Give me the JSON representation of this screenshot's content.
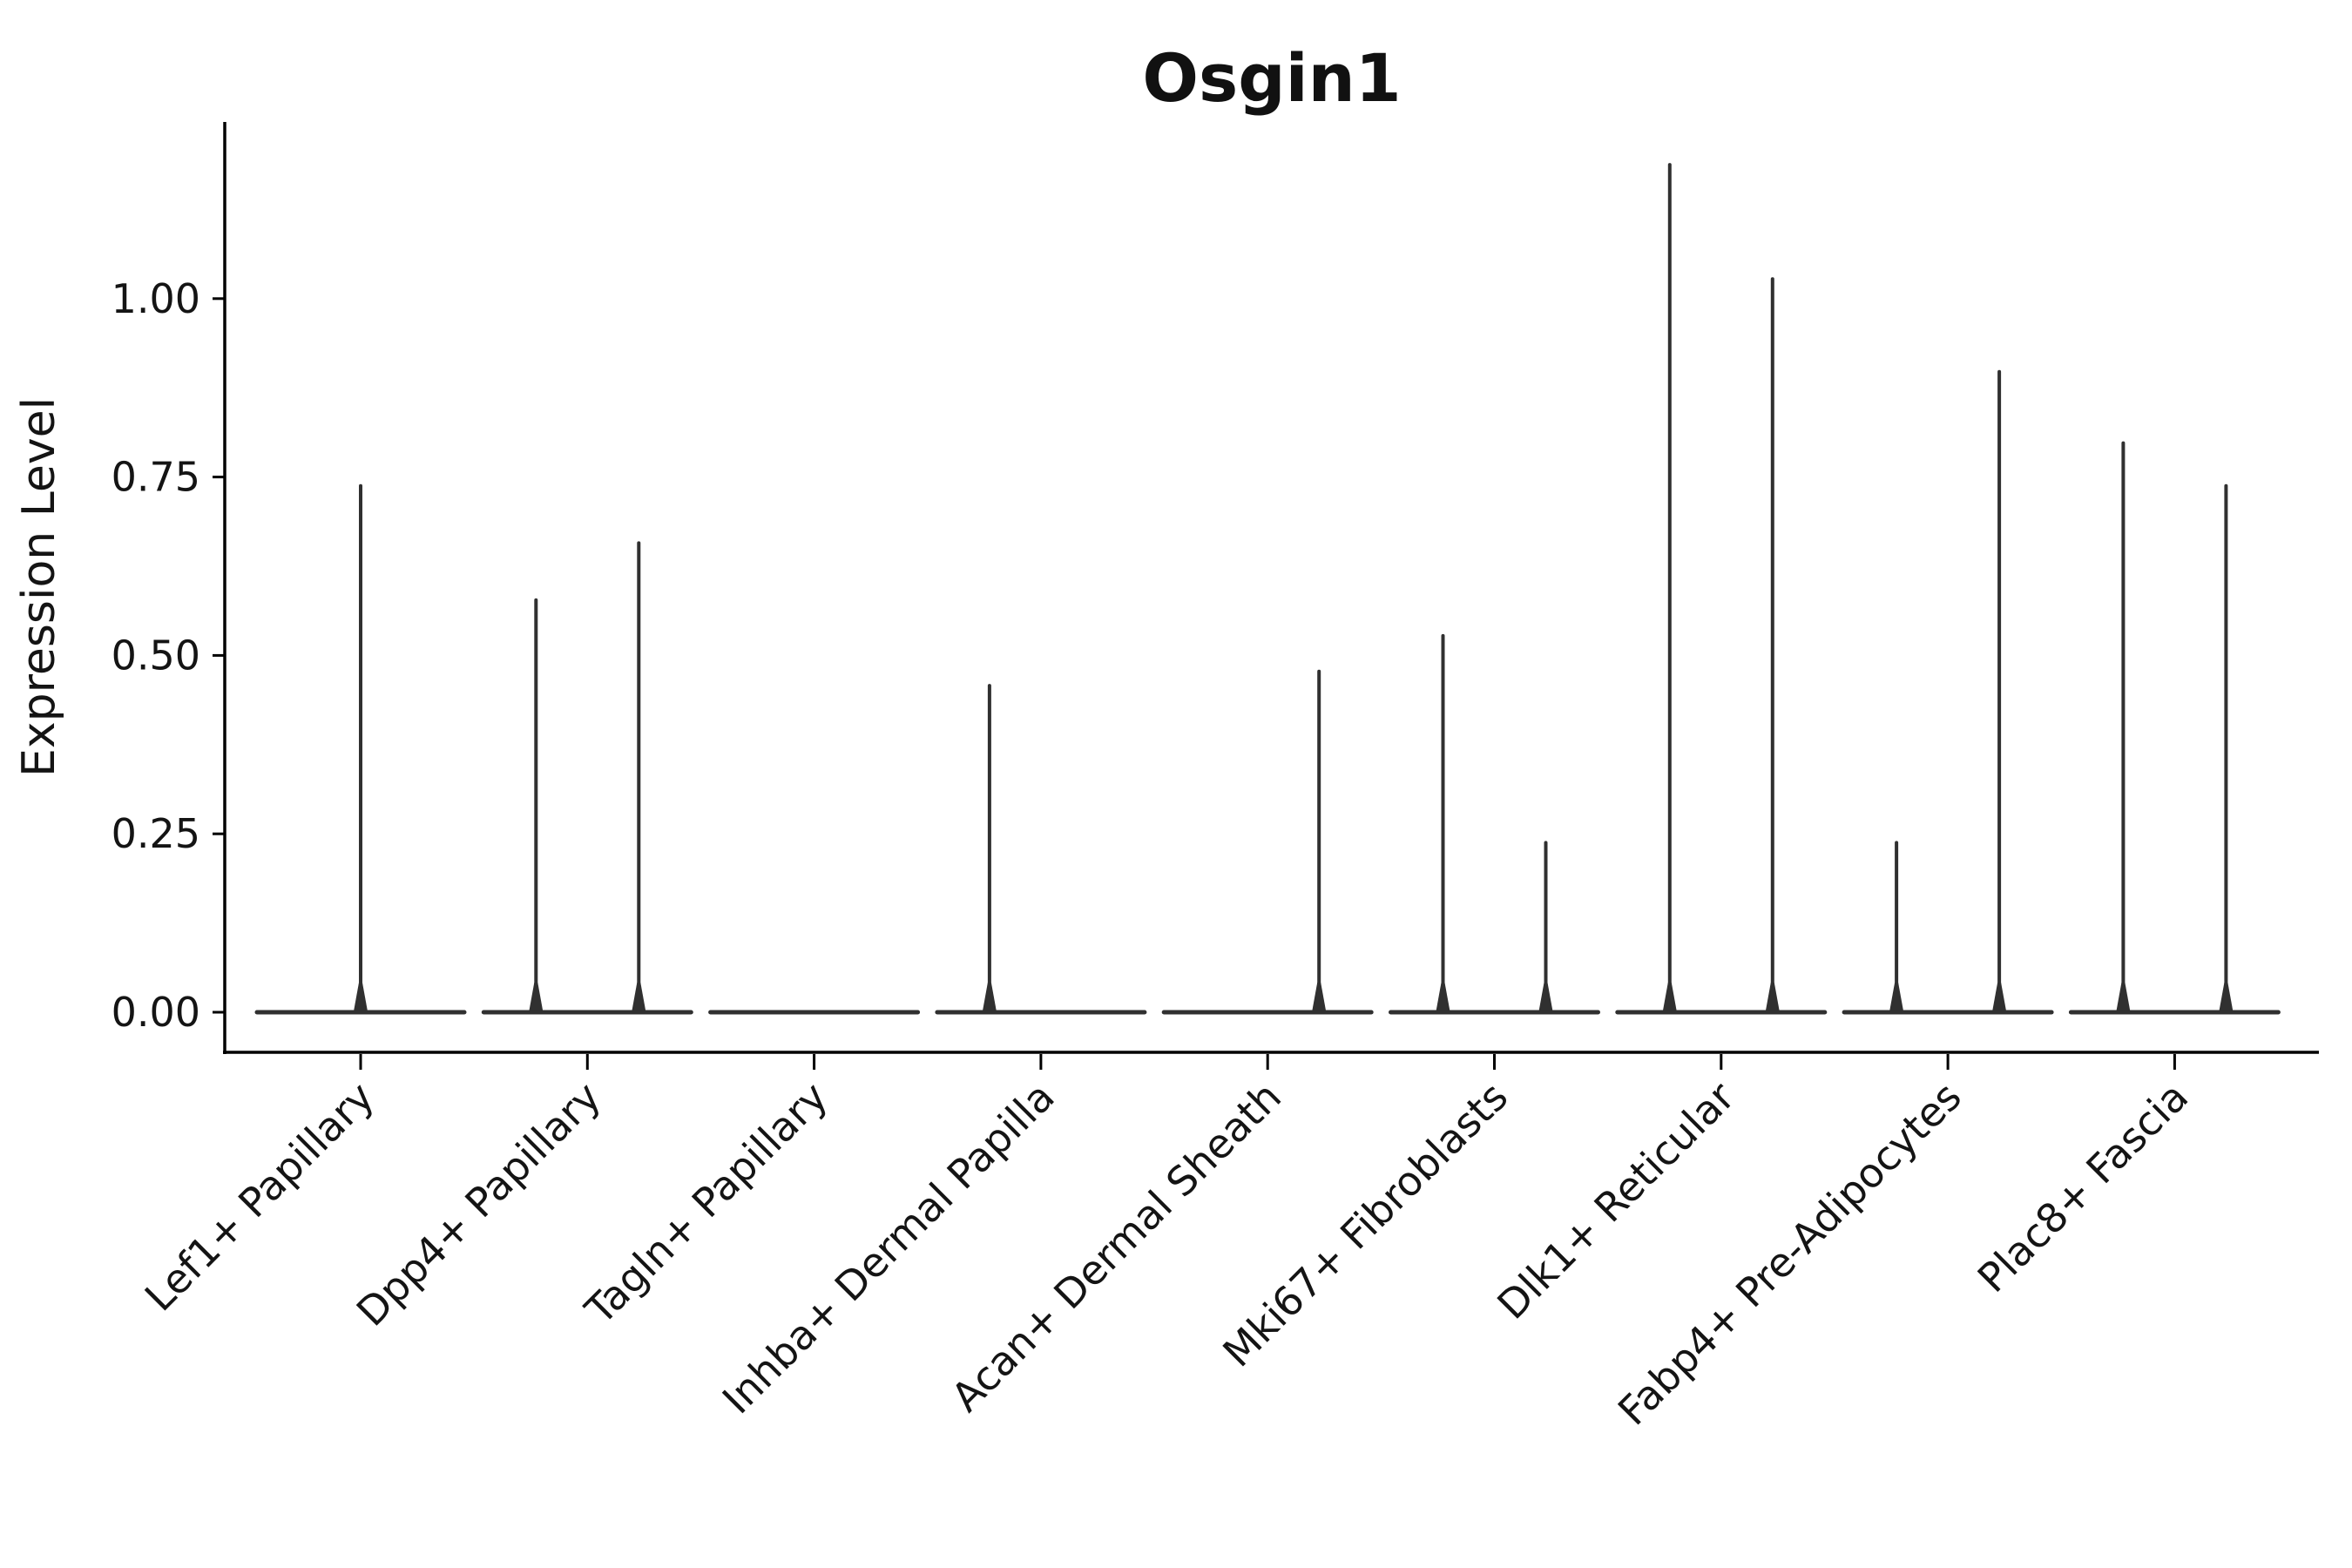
{
  "page": {
    "background": "#ffffff"
  },
  "chart": {
    "colors": {
      "axis": "#000000",
      "text": "#141414",
      "violin": "#303030"
    }
  },
  "chart_data": {
    "type": "violin",
    "title": "Osgin1",
    "xlabel": "",
    "ylabel": "Expression Level",
    "legend": "none",
    "grid": false,
    "ylim": [
      -0.056,
      1.248
    ],
    "ytick_values": [
      0.0,
      0.25,
      0.5,
      0.75,
      1.0
    ],
    "yticks": [
      "0.00",
      "0.25",
      "0.50",
      "0.75",
      "1.00"
    ],
    "categories": [
      {
        "label": "Lef1+ Papillary",
        "violins": [
          {
            "position": "center",
            "max": 0.74
          }
        ]
      },
      {
        "label": "Dpp4+ Papillary",
        "violins": [
          {
            "position": "left",
            "max": 0.58
          },
          {
            "position": "right",
            "max": 0.66
          }
        ]
      },
      {
        "label": "Tagln+ Papillary",
        "violins": [
          {
            "position": "center",
            "max": 0
          }
        ]
      },
      {
        "label": "Inhba+ Dermal Papilla",
        "violins": [
          {
            "position": "left",
            "max": 0.46
          },
          {
            "position": "right",
            "max": 0
          }
        ]
      },
      {
        "label": "Acan+ Dermal Sheath",
        "violins": [
          {
            "position": "left",
            "max": 0
          },
          {
            "position": "right",
            "max": 0.48
          }
        ]
      },
      {
        "label": "Mki67+ Fibroblasts",
        "violins": [
          {
            "position": "left",
            "max": 0.53
          },
          {
            "position": "right",
            "max": 0.24
          }
        ]
      },
      {
        "label": "Dlk1+ Reticular",
        "violins": [
          {
            "position": "left",
            "max": 1.19
          },
          {
            "position": "right",
            "max": 1.03
          }
        ]
      },
      {
        "label": "Fabp4+ Pre-Adipocytes",
        "violins": [
          {
            "position": "left",
            "max": 0.24
          },
          {
            "position": "right",
            "max": 0.9
          }
        ]
      },
      {
        "label": "Plac8+ Fascia",
        "violins": [
          {
            "position": "left",
            "max": 0.8
          },
          {
            "position": "right",
            "max": 0.74
          }
        ]
      }
    ]
  }
}
